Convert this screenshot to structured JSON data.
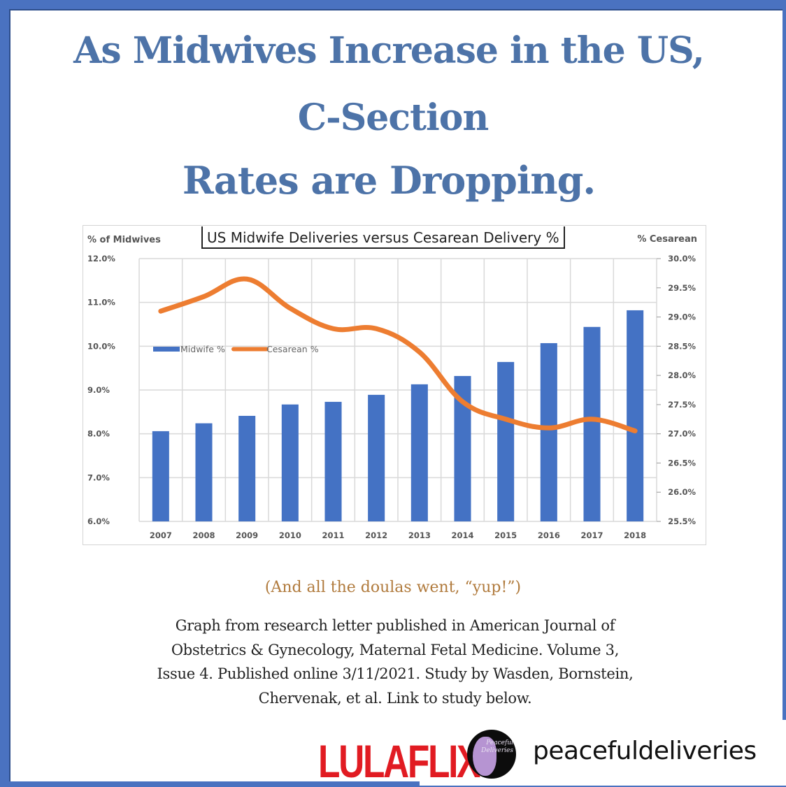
{
  "headline": {
    "line1": "As Midwives Increase in the US,",
    "line2": "C-Section",
    "line3": "Rates are Dropping."
  },
  "colors": {
    "frame_blue": "#4a72c0",
    "headline_blue": "#4d73a8",
    "bar_blue": "#4472c4",
    "line_orange": "#ed7d31",
    "caption_tan": "#b07a3c",
    "brand_red": "#e11b22"
  },
  "chart_data": {
    "type": "bar+line",
    "title": "US Midwife Deliveries versus Cesarean Delivery %",
    "xlabel": "",
    "ylabel_left": "% of Midwives",
    "ylabel_right": "% Cesarean",
    "categories": [
      "2007",
      "2008",
      "2009",
      "2010",
      "2011",
      "2012",
      "2013",
      "2014",
      "2015",
      "2016",
      "2017",
      "2018"
    ],
    "series": [
      {
        "name": "Midwife %",
        "type": "bar",
        "axis": "left",
        "values": [
          8.06,
          8.24,
          8.41,
          8.67,
          8.73,
          8.89,
          9.13,
          9.32,
          9.64,
          10.07,
          10.44,
          10.82
        ]
      },
      {
        "name": "Cesarean %",
        "type": "line",
        "axis": "right",
        "values": [
          29.1,
          29.35,
          29.65,
          29.15,
          28.8,
          28.8,
          28.4,
          27.55,
          27.25,
          27.1,
          27.25,
          27.05
        ]
      }
    ],
    "ylim_left": [
      6.0,
      12.0
    ],
    "yticks_left": [
      "12.0%",
      "11.0%",
      "10.0%",
      "9.0%",
      "8.0%",
      "7.0%",
      "6.0%"
    ],
    "ylim_right": [
      25.5,
      30.0
    ],
    "yticks_right": [
      "30.0%",
      "29.5%",
      "29.0%",
      "28.5%",
      "28.0%",
      "27.5%",
      "27.0%",
      "26.5%",
      "26.0%",
      "25.5%"
    ],
    "grid": true,
    "legend": {
      "position": "inside-top-left",
      "entries": [
        "Midwife %",
        "Cesarean %"
      ]
    }
  },
  "caption": "(And all the doulas went, “yup!”)",
  "source_lines": [
    "Graph from research letter published in American Journal of",
    "Obstetrics & Gynecology, Maternal Fetal Medicine. Volume 3,",
    "Issue 4. Published online 3/11/2021. Study by Wasden, Bornstein,",
    "Chervenak, et al. Link to study below."
  ],
  "footer": {
    "brand": "LULAFLIX",
    "badge_text": "Peaceful Deliveries",
    "handle": "peacefuldeliveries"
  }
}
